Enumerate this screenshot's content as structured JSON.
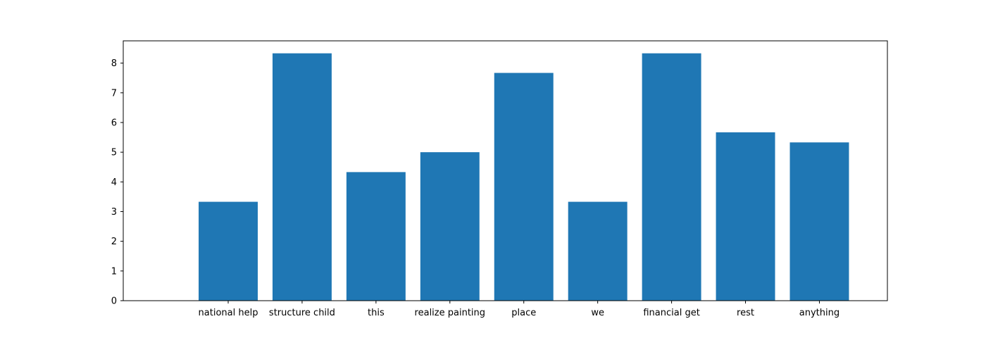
{
  "chart_data": {
    "type": "bar",
    "categories": [
      "national help",
      "structure child",
      "this",
      "realize painting",
      "place",
      "we",
      "financial get",
      "rest",
      "anything"
    ],
    "values": [
      3.33,
      8.33,
      4.33,
      5.0,
      7.67,
      3.33,
      8.33,
      5.67,
      5.33
    ],
    "title": "",
    "xlabel": "",
    "ylabel": "",
    "ylim": [
      0,
      8.75
    ],
    "yticks": [
      "0",
      "1",
      "2",
      "3",
      "4",
      "5",
      "6",
      "7",
      "8"
    ],
    "grid": false,
    "bar_color": "#1f77b4"
  }
}
